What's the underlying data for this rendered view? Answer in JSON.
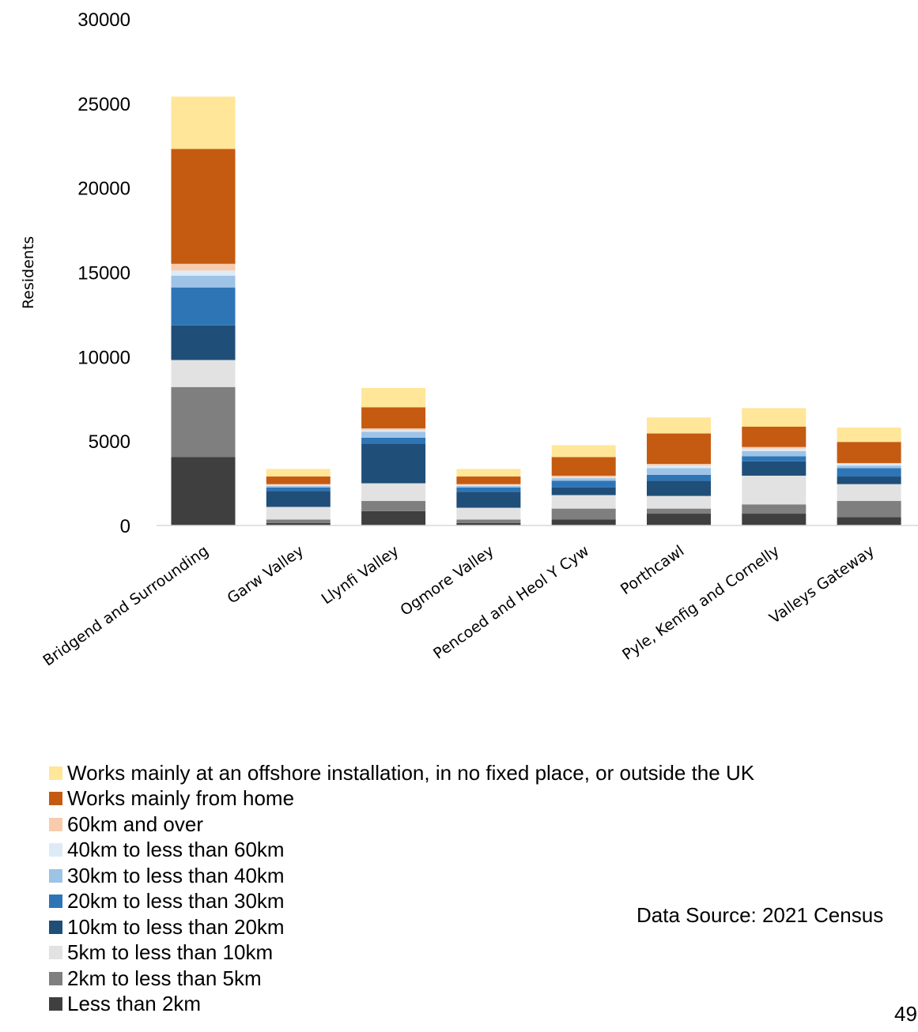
{
  "chart_data": {
    "type": "bar",
    "stacked": true,
    "ylabel": "Residents",
    "xlabel": "",
    "ylim": [
      0,
      30000
    ],
    "yticks": [
      0,
      5000,
      10000,
      15000,
      20000,
      25000,
      30000
    ],
    "grid": false,
    "legend_position": "bottom",
    "categories": [
      "Bridgend and Surrounding",
      "Garw Valley",
      "Llynfi Valley",
      "Ogmore Valley",
      "Pencoed and Heol Y Cyw",
      "Porthcawl",
      "Pyle, Kenfig and Cornelly",
      "Valleys Gateway"
    ],
    "series": [
      {
        "name": "Less than 2km",
        "color": "#3f3f3f",
        "values": [
          4050,
          150,
          850,
          150,
          350,
          700,
          700,
          500
        ]
      },
      {
        "name": "2km to less than 5km",
        "color": "#7f7f7f",
        "values": [
          4150,
          200,
          600,
          200,
          650,
          300,
          550,
          950
        ]
      },
      {
        "name": "5km to less than 10km",
        "color": "#e2e2e2",
        "values": [
          1600,
          750,
          1050,
          700,
          800,
          750,
          1700,
          1000
        ]
      },
      {
        "name": "10km to less than 20km",
        "color": "#1f4e79",
        "values": [
          2050,
          950,
          2350,
          950,
          450,
          900,
          850,
          450
        ]
      },
      {
        "name": "20km to less than 30km",
        "color": "#2e75b6",
        "values": [
          2250,
          200,
          350,
          250,
          400,
          350,
          300,
          500
        ]
      },
      {
        "name": "30km to less than 40km",
        "color": "#9dc3e6",
        "values": [
          700,
          100,
          350,
          100,
          150,
          400,
          300,
          150
        ]
      },
      {
        "name": "40km to less than 60km",
        "color": "#ddebf7",
        "values": [
          300,
          50,
          100,
          50,
          50,
          150,
          150,
          100
        ]
      },
      {
        "name": "60km and over",
        "color": "#f8cbad",
        "values": [
          400,
          50,
          100,
          50,
          100,
          100,
          100,
          50
        ]
      },
      {
        "name": "Works mainly from home",
        "color": "#c55a11",
        "values": [
          6800,
          450,
          1250,
          450,
          1100,
          1800,
          1200,
          1250
        ]
      },
      {
        "name": "Works mainly at an offshore installation, in no fixed place, or outside the UK",
        "color": "#ffe699",
        "values": [
          3100,
          450,
          1150,
          450,
          700,
          950,
          1100,
          850
        ]
      }
    ]
  },
  "notes": {
    "source": "Data Source: 2021 Census",
    "page_number": "49"
  }
}
